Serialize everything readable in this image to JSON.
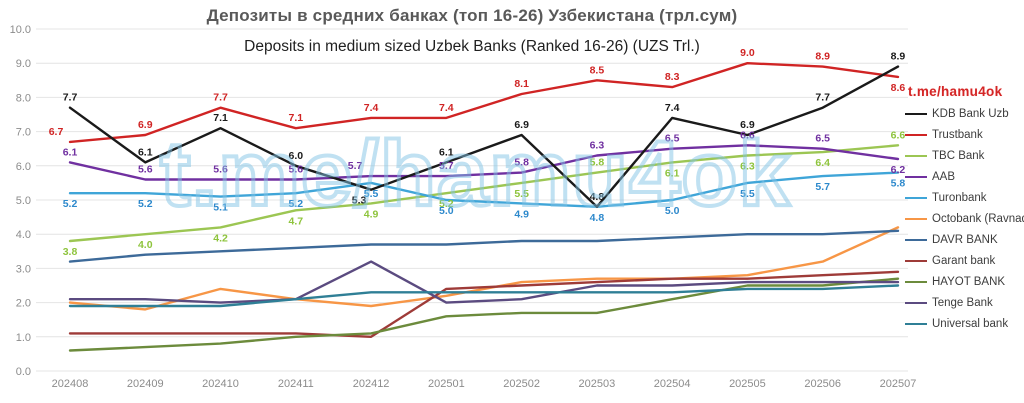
{
  "title": "Депозиты в средних банках (топ 16-26) Узбекистана (трл.сум)",
  "subtitle": "Deposits in medium sized Uzbek Banks (Ranked 16-26) (UZS Trl.)",
  "watermark": {
    "main_text": "t.me/hamu4ok",
    "legend_badge_text": "t.me/hamu4ok",
    "main_color": "#82c4e6",
    "badge_color": "#d42626"
  },
  "chart_data": {
    "type": "line",
    "title": "Депозиты в средних банках (топ 16-26) Узбекистана (трл.сум)",
    "subtitle": "Deposits in medium sized Uzbek Banks (Ranked 16-26) (UZS Trl.)",
    "categories": [
      "202408",
      "202409",
      "202410",
      "202411",
      "202412",
      "202501",
      "202502",
      "202503",
      "202504",
      "202505",
      "202506",
      "202507"
    ],
    "ylim": [
      0,
      10
    ],
    "ytick_step": 1.0,
    "y_tick_labels": [
      "0.0",
      "1.0",
      "2.0",
      "3.0",
      "4.0",
      "5.0",
      "6.0",
      "7.0",
      "8.0",
      "9.0",
      "10.0"
    ],
    "grid": true,
    "legend_position": "right",
    "series": [
      {
        "name": "KDB Bank Uzb",
        "color": "#1a1a1a",
        "label_color": "#1a1a1a",
        "labeled": true,
        "label_side": "above",
        "values": [
          7.7,
          6.1,
          7.1,
          6.0,
          5.3,
          6.1,
          6.9,
          4.8,
          7.4,
          6.9,
          7.7,
          8.9
        ]
      },
      {
        "name": "Trustbank",
        "color": "#d02424",
        "label_color": "#d02424",
        "labeled": true,
        "label_side": "above",
        "values": [
          6.7,
          6.9,
          7.7,
          7.1,
          7.4,
          7.4,
          8.1,
          8.5,
          8.3,
          9.0,
          8.9,
          8.6
        ]
      },
      {
        "name": "TBC Bank",
        "color": "#9cc653",
        "label_color": "#8ec43c",
        "labeled": true,
        "label_side": "below",
        "values": [
          3.8,
          4.0,
          4.2,
          4.7,
          4.9,
          5.2,
          5.5,
          5.8,
          6.1,
          6.3,
          6.4,
          6.6
        ]
      },
      {
        "name": "AAB",
        "color": "#7030a0",
        "label_color": "#7030a0",
        "labeled": true,
        "label_side": "above",
        "values": [
          6.1,
          5.6,
          5.6,
          5.6,
          5.7,
          5.7,
          5.8,
          6.3,
          6.5,
          6.6,
          6.5,
          6.2
        ]
      },
      {
        "name": "Turonbank",
        "color": "#3fa5d8",
        "label_color": "#2d89cc",
        "labeled": true,
        "label_side": "below",
        "values": [
          5.2,
          5.2,
          5.1,
          5.2,
          5.5,
          5.0,
          4.9,
          4.8,
          5.0,
          5.5,
          5.7,
          5.8
        ]
      },
      {
        "name": "Octobank (Ravnaq)",
        "color": "#f79646",
        "label_color": "#f79646",
        "labeled": false,
        "label_side": "above",
        "values": [
          2.0,
          1.8,
          2.4,
          2.1,
          1.9,
          2.2,
          2.6,
          2.7,
          2.7,
          2.8,
          3.2,
          4.2
        ]
      },
      {
        "name": "DAVR BANK",
        "color": "#3d6a99",
        "label_color": "#3d6a99",
        "labeled": false,
        "label_side": "above",
        "values": [
          3.2,
          3.4,
          3.5,
          3.6,
          3.7,
          3.7,
          3.8,
          3.8,
          3.9,
          4.0,
          4.0,
          4.1
        ]
      },
      {
        "name": "Garant bank",
        "color": "#9e3b38",
        "label_color": "#9e3b38",
        "labeled": false,
        "label_side": "above",
        "values": [
          1.1,
          1.1,
          1.1,
          1.1,
          1.0,
          2.4,
          2.5,
          2.6,
          2.7,
          2.7,
          2.8,
          2.9
        ]
      },
      {
        "name": "HAYOT BANK",
        "color": "#6c8b3c",
        "label_color": "#6c8b3c",
        "labeled": false,
        "label_side": "above",
        "values": [
          0.6,
          0.7,
          0.8,
          1.0,
          1.1,
          1.6,
          1.7,
          1.7,
          2.1,
          2.5,
          2.5,
          2.7
        ]
      },
      {
        "name": "Tenge Bank",
        "color": "#5b4b80",
        "label_color": "#5b4b80",
        "labeled": false,
        "label_side": "above",
        "values": [
          2.1,
          2.1,
          2.0,
          2.1,
          3.2,
          2.0,
          2.1,
          2.5,
          2.5,
          2.6,
          2.6,
          2.6
        ]
      },
      {
        "name": "Universal bank",
        "color": "#2f7f96",
        "label_color": "#2f7f96",
        "labeled": false,
        "label_side": "above",
        "values": [
          1.9,
          1.9,
          1.9,
          2.1,
          2.3,
          2.3,
          2.3,
          2.3,
          2.3,
          2.4,
          2.4,
          2.5
        ]
      }
    ]
  }
}
